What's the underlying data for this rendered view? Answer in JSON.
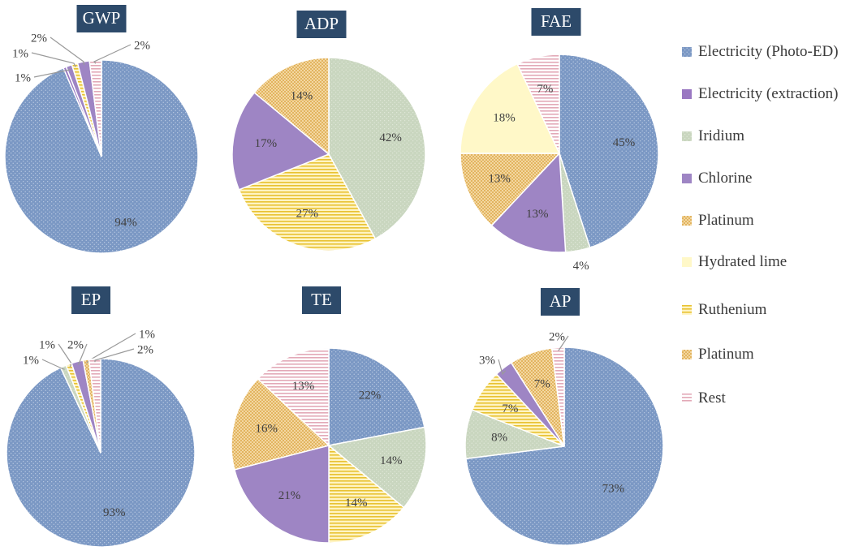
{
  "chart_data": [
    {
      "type": "pie",
      "title": "GWP",
      "slices": [
        {
          "category": "Electricity (Photo-ED)",
          "value": 94,
          "label": "94%"
        },
        {
          "category": "Electricity (extraction)",
          "value": 0.5,
          "label": ""
        },
        {
          "category": "Chlorine",
          "value": 1,
          "label": "1%"
        },
        {
          "category": "Ruthenium",
          "value": 1,
          "label": "1%"
        },
        {
          "category": "Chlorine",
          "value": 2,
          "label": "2%"
        },
        {
          "category": "Rest",
          "value": 2,
          "label": "2%"
        }
      ]
    },
    {
      "type": "pie",
      "title": "ADP",
      "slices": [
        {
          "category": "Iridium",
          "value": 42,
          "label": "42%"
        },
        {
          "category": "Ruthenium",
          "value": 27,
          "label": "27%"
        },
        {
          "category": "Chlorine",
          "value": 17,
          "label": "17%"
        },
        {
          "category": "Platinum",
          "value": 14,
          "label": "14%"
        }
      ]
    },
    {
      "type": "pie",
      "title": "FAE",
      "slices": [
        {
          "category": "Electricity (Photo-ED)",
          "value": 45,
          "label": "45%"
        },
        {
          "category": "Iridium",
          "value": 4,
          "label": "4%"
        },
        {
          "category": "Chlorine",
          "value": 13,
          "label": "13%"
        },
        {
          "category": "Platinum",
          "value": 13,
          "label": "13%"
        },
        {
          "category": "Hydrated lime",
          "value": 18,
          "label": "18%"
        },
        {
          "category": "Rest",
          "value": 7,
          "label": "7%"
        }
      ]
    },
    {
      "type": "pie",
      "title": "EP",
      "slices": [
        {
          "category": "Electricity (Photo-ED)",
          "value": 93,
          "label": "93%"
        },
        {
          "category": "Iridium",
          "value": 1,
          "label": "1%"
        },
        {
          "category": "Ruthenium",
          "value": 1,
          "label": "1%"
        },
        {
          "category": "Chlorine",
          "value": 2,
          "label": "2%"
        },
        {
          "category": "Platinum",
          "value": 1,
          "label": "1%"
        },
        {
          "category": "Rest",
          "value": 2,
          "label": "2%"
        }
      ]
    },
    {
      "type": "pie",
      "title": "TE",
      "slices": [
        {
          "category": "Electricity (Photo-ED)",
          "value": 22,
          "label": "22%"
        },
        {
          "category": "Iridium",
          "value": 14,
          "label": "14%"
        },
        {
          "category": "Ruthenium",
          "value": 14,
          "label": "14%"
        },
        {
          "category": "Chlorine",
          "value": 21,
          "label": "21%"
        },
        {
          "category": "Platinum",
          "value": 16,
          "label": "16%"
        },
        {
          "category": "Rest",
          "value": 13,
          "label": "13%"
        }
      ]
    },
    {
      "type": "pie",
      "title": "AP",
      "slices": [
        {
          "category": "Electricity (Photo-ED)",
          "value": 73,
          "label": "73%"
        },
        {
          "category": "Iridium",
          "value": 8,
          "label": "8%"
        },
        {
          "category": "Ruthenium",
          "value": 7,
          "label": "7%"
        },
        {
          "category": "Chlorine",
          "value": 3,
          "label": "3%"
        },
        {
          "category": "Platinum",
          "value": 7,
          "label": "7%"
        },
        {
          "category": "Rest",
          "value": 2,
          "label": "2%"
        }
      ]
    }
  ],
  "legend": [
    {
      "label": "Electricity (Photo-ED)",
      "key": "photo_ed"
    },
    {
      "label": "Electricity (extraction)",
      "key": "extraction"
    },
    {
      "label": "Iridium",
      "key": "iridium"
    },
    {
      "label": "Chlorine",
      "key": "chlorine"
    },
    {
      "label": "Platinum",
      "key": "platinum"
    },
    {
      "label": "Hydrated lime",
      "key": "lime"
    },
    {
      "label": "Ruthenium",
      "key": "ruthenium"
    },
    {
      "label": "Platinum",
      "key": "platinum"
    },
    {
      "label": "Rest",
      "key": "rest"
    }
  ],
  "colors": {
    "photo_ed": "#7B98C4",
    "extraction": "#9A78C2",
    "iridium": "#C9D6BF",
    "chlorine": "#9E85C4",
    "platinum": "#E2B460",
    "lime": "#FFF8C8",
    "ruthenium": "#E8C232",
    "rest": "#E9C9D2",
    "title_bg": "#2D4A6A",
    "title_text": "#FFFFFF",
    "label_text": "#404040"
  }
}
